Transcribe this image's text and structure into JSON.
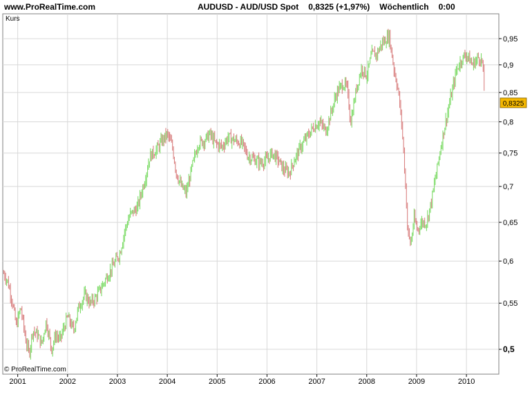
{
  "header": {
    "site": "www.ProRealTime.com",
    "symbol": "AUDUSD - AUD/USD Spot",
    "price_change": "0,8325 (+1,97%)",
    "period": "Wöchentlich",
    "time": "0:00"
  },
  "panel_label": "Kurs",
  "copyright": "© ProRealTime.com",
  "colors": {
    "up": "#7CDB66",
    "down": "#D98080",
    "grid": "#D8D8D8",
    "price_tag": "#F5B800"
  },
  "chart_data": {
    "type": "line",
    "price_tag": "0,8325",
    "y_scale": "log",
    "ylim": [
      0.475,
      1.0
    ],
    "xlim": [
      2000.7,
      2010.65
    ],
    "y_ticks": [
      {
        "value": 0.5,
        "label": "0,5",
        "bold": true
      },
      {
        "value": 0.55,
        "label": "0,55"
      },
      {
        "value": 0.6,
        "label": "0,6"
      },
      {
        "value": 0.65,
        "label": "0,65"
      },
      {
        "value": 0.7,
        "label": "0,7"
      },
      {
        "value": 0.75,
        "label": "0,75"
      },
      {
        "value": 0.8,
        "label": "0,8"
      },
      {
        "value": 0.85,
        "label": "0,85"
      },
      {
        "value": 0.9,
        "label": "0,9"
      },
      {
        "value": 0.95,
        "label": "0,95"
      }
    ],
    "x_ticks": [
      {
        "value": 2001.0,
        "label": "2001"
      },
      {
        "value": 2002.0,
        "label": "2002"
      },
      {
        "value": 2003.0,
        "label": "2003"
      },
      {
        "value": 2004.0,
        "label": "2004"
      },
      {
        "value": 2005.0,
        "label": "2005"
      },
      {
        "value": 2006.0,
        "label": "2006"
      },
      {
        "value": 2007.0,
        "label": "2007"
      },
      {
        "value": 2008.0,
        "label": "2008"
      },
      {
        "value": 2009.0,
        "label": "2009"
      },
      {
        "value": 2010.0,
        "label": "2010"
      }
    ],
    "series": [
      {
        "x": [
          2000.72,
          2000.8,
          2000.88,
          2000.97,
          2001.06,
          2001.16,
          2001.23,
          2001.3,
          2001.4,
          2001.48,
          2001.57,
          2001.68,
          2001.76,
          2001.85,
          2002.0,
          2002.12,
          2002.22,
          2002.35,
          2002.45,
          2002.55,
          2002.65,
          2002.78,
          2002.92,
          2003.05,
          2003.15,
          2003.25,
          2003.4,
          2003.55,
          2003.65,
          2003.78,
          2003.9,
          2004.0,
          2004.1,
          2004.18,
          2004.28,
          2004.38,
          2004.5,
          2004.62,
          2004.75,
          2004.85,
          2004.97,
          2005.1,
          2005.22,
          2005.35,
          2005.5,
          2005.62,
          2005.75,
          2005.87,
          2006.0,
          2006.1,
          2006.22,
          2006.33,
          2006.45,
          2006.55,
          2006.68,
          2006.8,
          2006.92,
          2007.05,
          2007.18,
          2007.3,
          2007.4,
          2007.52,
          2007.6,
          2007.68,
          2007.8,
          2007.9,
          2008.0,
          2008.1,
          2008.2,
          2008.3,
          2008.45,
          2008.55,
          2008.62,
          2008.7,
          2008.78,
          2008.82,
          2008.88,
          2008.95,
          2009.02,
          2009.1,
          2009.2,
          2009.3,
          2009.42,
          2009.52,
          2009.62,
          2009.72,
          2009.8,
          2009.9,
          2010.0,
          2010.12,
          2010.25,
          2010.32,
          2010.37
        ],
        "values": [
          0.585,
          0.575,
          0.555,
          0.525,
          0.545,
          0.51,
          0.495,
          0.52,
          0.515,
          0.505,
          0.53,
          0.5,
          0.515,
          0.51,
          0.535,
          0.52,
          0.545,
          0.56,
          0.55,
          0.555,
          0.565,
          0.58,
          0.595,
          0.61,
          0.64,
          0.66,
          0.67,
          0.71,
          0.745,
          0.755,
          0.77,
          0.78,
          0.76,
          0.72,
          0.7,
          0.69,
          0.73,
          0.765,
          0.77,
          0.78,
          0.765,
          0.76,
          0.775,
          0.77,
          0.765,
          0.745,
          0.74,
          0.735,
          0.74,
          0.75,
          0.74,
          0.725,
          0.72,
          0.74,
          0.76,
          0.775,
          0.79,
          0.8,
          0.785,
          0.82,
          0.85,
          0.865,
          0.86,
          0.8,
          0.86,
          0.895,
          0.88,
          0.92,
          0.92,
          0.94,
          0.955,
          0.89,
          0.86,
          0.8,
          0.7,
          0.64,
          0.62,
          0.655,
          0.64,
          0.65,
          0.65,
          0.68,
          0.73,
          0.775,
          0.815,
          0.855,
          0.89,
          0.91,
          0.92,
          0.9,
          0.915,
          0.905,
          0.832
        ]
      }
    ]
  }
}
